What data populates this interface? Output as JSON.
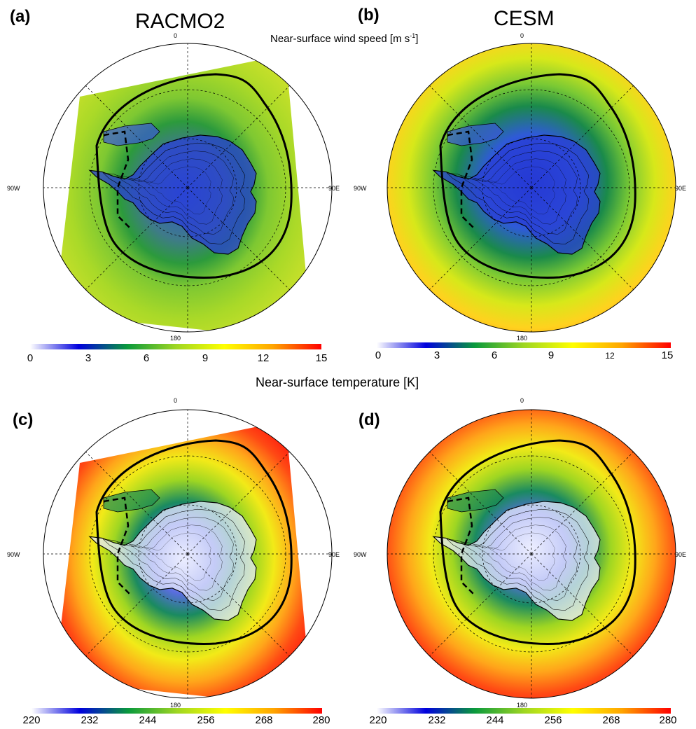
{
  "panels": [
    {
      "id": "a",
      "label": "(a)",
      "model": "RACMO2",
      "field": "wind",
      "domain": "rotated-square"
    },
    {
      "id": "b",
      "label": "(b)",
      "model": "CESM",
      "field": "wind",
      "domain": "full-disc"
    },
    {
      "id": "c",
      "label": "(c)",
      "model": "",
      "field": "temperature",
      "domain": "rotated-square"
    },
    {
      "id": "d",
      "label": "(d)",
      "model": "",
      "field": "temperature",
      "domain": "full-disc"
    }
  ],
  "wind": {
    "title": "Near-surface wind speed [m s",
    "title_sup": "-1",
    "title_end": "]",
    "ticks": [
      "0",
      "3",
      "6",
      "9",
      "12",
      "15"
    ],
    "colorscale": [
      "#ffffff",
      "#0000dd",
      "#0a9a3c",
      "#9ed622",
      "#ffff00",
      "#ffa500",
      "#ff0000"
    ]
  },
  "temperature": {
    "title": "Near-surface temperature [K]",
    "ticks": [
      "220",
      "232",
      "244",
      "256",
      "268",
      "280"
    ],
    "colorscale": [
      "#ffffff",
      "#0000dd",
      "#0a9a3c",
      "#9ed622",
      "#ffff00",
      "#ffa500",
      "#ff0000"
    ]
  },
  "geo_labels": {
    "top": "0",
    "bottom": "180",
    "left": "90W",
    "right": "90E"
  },
  "colors": {
    "antarctica_wind": "#2a3fd6",
    "antarctica_temp_core": "#eef0ff"
  }
}
